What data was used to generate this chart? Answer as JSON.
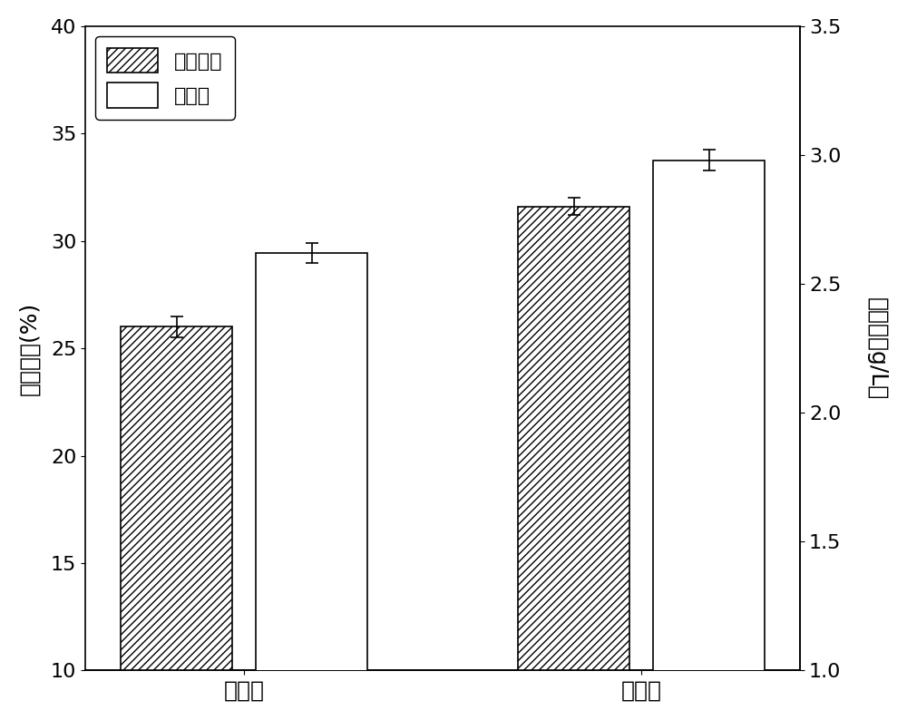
{
  "categories": [
    "超声前",
    "超声后"
  ],
  "oil_content": [
    26.0,
    31.6
  ],
  "oil_content_err": [
    0.5,
    0.4
  ],
  "biomass": [
    2.62,
    2.98
  ],
  "biomass_err": [
    0.04,
    0.04
  ],
  "left_ylim": [
    10,
    40
  ],
  "right_ylim": [
    1.0,
    3.5
  ],
  "left_yticks": [
    10,
    15,
    20,
    25,
    30,
    35,
    40
  ],
  "right_yticks": [
    1.0,
    1.5,
    2.0,
    2.5,
    3.0,
    3.5
  ],
  "left_ylabel": "油脂含量(%)",
  "right_ylabel": "生物量（g/L）",
  "legend_labels": [
    "油脂含量",
    "生物量"
  ],
  "bar_width": 0.28,
  "hatch_pattern": "////",
  "bar_edgecolor": "#000000",
  "oil_facecolor": "#ffffff",
  "biomass_facecolor": "#ffffff",
  "background_color": "#ffffff",
  "font_size": 18,
  "tick_font_size": 16,
  "legend_font_size": 16
}
